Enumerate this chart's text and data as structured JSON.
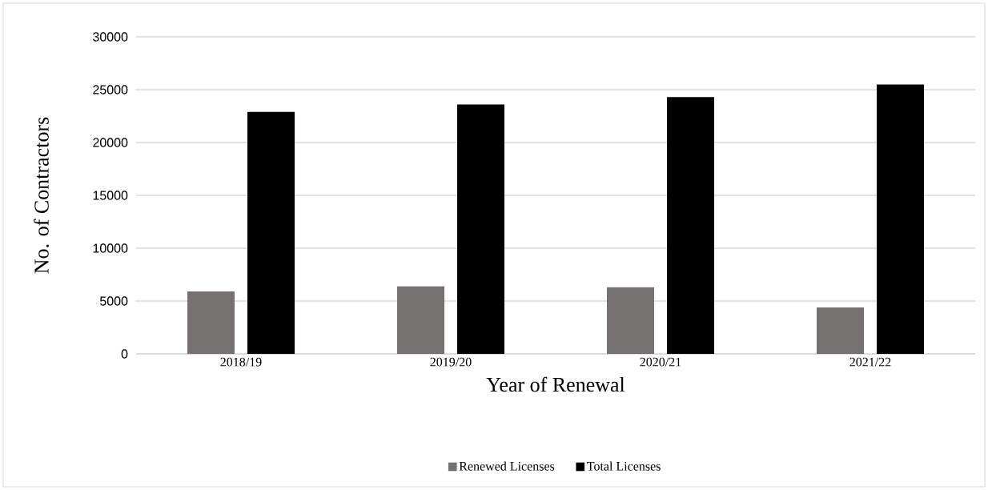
{
  "chart_data": {
    "type": "bar",
    "xlabel": "Year of Renewal",
    "ylabel": "No. of Contractors",
    "categories": [
      "2018/19",
      "2019/20",
      "2020/21",
      "2021/22"
    ],
    "series": [
      {
        "name": "Renewed Licenses",
        "color": "#767171",
        "values": [
          5900,
          6400,
          6300,
          4400
        ]
      },
      {
        "name": "Total Licenses",
        "color": "#000000",
        "values": [
          22900,
          23600,
          24300,
          25500
        ]
      }
    ],
    "ylim": [
      0,
      30000
    ],
    "yticks": [
      0,
      5000,
      10000,
      15000,
      20000,
      25000,
      30000
    ],
    "grid": "y",
    "legend": "bottom"
  }
}
